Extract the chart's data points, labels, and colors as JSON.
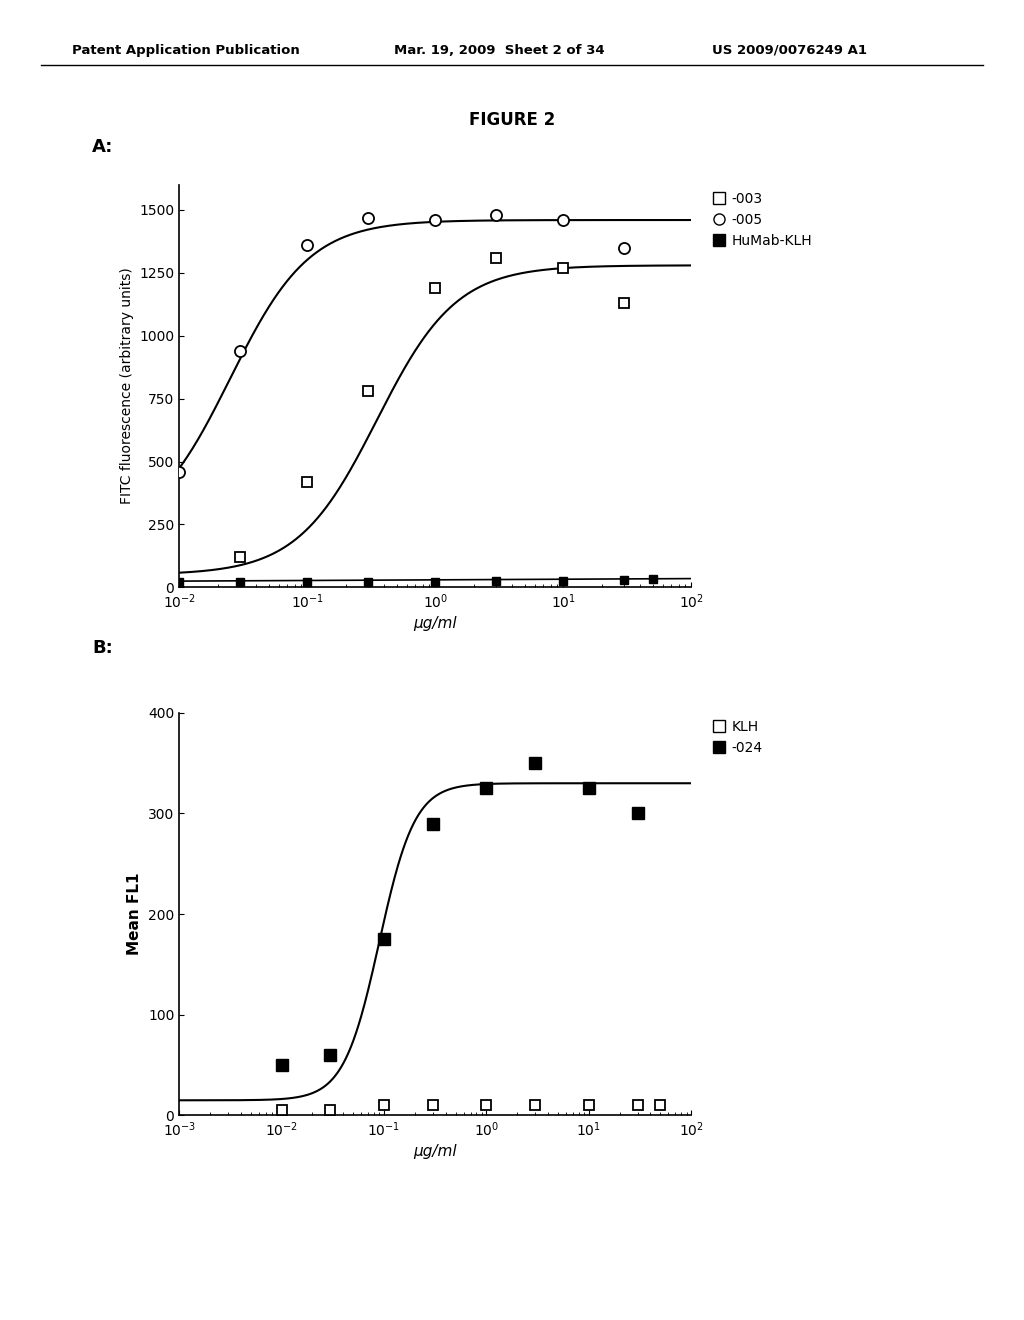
{
  "header_left": "Patent Application Publication",
  "header_mid": "Mar. 19, 2009  Sheet 2 of 34",
  "header_right": "US 2009/0076249 A1",
  "figure_title": "FIGURE 2",
  "panel_A_label": "A:",
  "panel_B_label": "B:",
  "panel_A": {
    "ylabel": "FITC fluorescence (arbitrary units)",
    "xlabel": "μg/ml",
    "ylim": [
      0,
      1600
    ],
    "yticks": [
      0,
      250,
      500,
      750,
      1000,
      1250,
      1500
    ],
    "xlim_log": [
      -2,
      2
    ],
    "series_003": {
      "label": "-003",
      "x_data": [
        0.03,
        0.1,
        0.3,
        1.0,
        3.0,
        10.0,
        30.0
      ],
      "y_data": [
        120,
        420,
        780,
        1190,
        1310,
        1270,
        1130
      ],
      "Emax": 1280,
      "EC50": 0.35,
      "n": 1.4,
      "baseline": 50
    },
    "series_005": {
      "label": "-005",
      "x_data": [
        0.01,
        0.03,
        0.1,
        0.3,
        1.0,
        3.0,
        10.0,
        30.0
      ],
      "y_data": [
        460,
        940,
        1360,
        1470,
        1460,
        1480,
        1460,
        1350
      ],
      "Emax": 1460,
      "EC50": 0.025,
      "n": 1.4,
      "baseline": 200
    },
    "series_klh": {
      "label": "HuMab-KLH",
      "x_data": [
        0.01,
        0.03,
        0.1,
        0.3,
        1.0,
        3.0,
        10.0,
        30.0,
        50.0
      ],
      "y_data": [
        20,
        20,
        20,
        20,
        20,
        25,
        25,
        30,
        35
      ]
    }
  },
  "panel_B": {
    "ylabel": "Mean FL1",
    "xlabel": "μg/ml",
    "ylim": [
      0,
      400
    ],
    "yticks": [
      0,
      100,
      200,
      300,
      400
    ],
    "xlim_log": [
      -3,
      2
    ],
    "series_klh": {
      "label": "KLH",
      "x_data": [
        0.01,
        0.03,
        0.1,
        0.3,
        1.0,
        3.0,
        10.0,
        30.0,
        50.0
      ],
      "y_data": [
        5,
        5,
        10,
        10,
        10,
        10,
        10,
        10,
        10
      ]
    },
    "series_024": {
      "label": "-024",
      "x_data": [
        0.01,
        0.03,
        0.1,
        0.3,
        1.0,
        3.0,
        10.0,
        30.0
      ],
      "y_data": [
        50,
        60,
        175,
        290,
        325,
        350,
        325,
        300
      ],
      "Emax": 330,
      "EC50": 0.09,
      "n": 2.5,
      "baseline": 15
    }
  }
}
